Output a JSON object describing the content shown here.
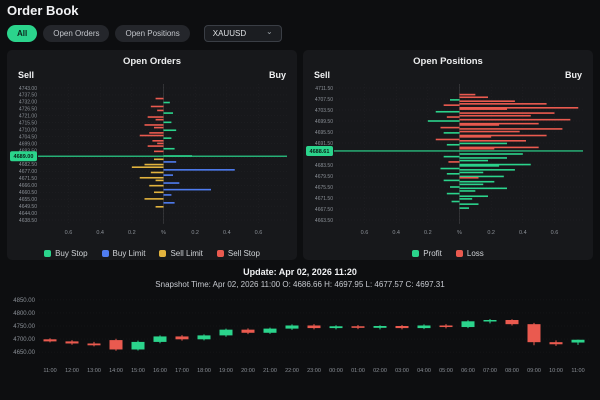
{
  "header": {
    "title": "Order Book"
  },
  "filters": {
    "all": "All",
    "open_orders": "Open Orders",
    "open_positions": "Open Positions",
    "symbol": "XAUUSD"
  },
  "panels": {
    "orders": {
      "title": "Open Orders",
      "sell": "Sell",
      "buy": "Buy"
    },
    "positions": {
      "title": "Open Positions",
      "sell": "Sell",
      "buy": "Buy"
    }
  },
  "footer": {
    "update": "Update: Apr 02, 2026 11:20",
    "snapshot": "Snapshot Time: Apr 02, 2026 11:00   O: 4686.66 H: 4697.95 L: 4677.57 C: 4697.31"
  },
  "colors": {
    "page_bg": "#0d0e10",
    "panel_bg": "#17181b",
    "accent": "#2bd48c",
    "buy_stop": "#2bd48c",
    "buy_limit": "#4f7cf0",
    "sell_limit": "#e2b33e",
    "sell_stop": "#ea5a4f",
    "profit": "#2bd48c",
    "loss": "#ea5a4f",
    "up": "#2bd48c",
    "down": "#ea5a4f"
  },
  "chart_data": [
    {
      "id": "open-orders-depth",
      "type": "bar",
      "orientation": "horizontal-depth",
      "title": "Open Orders",
      "center_price": 4689.0,
      "center_price_label": "4689.00",
      "price_labels": [
        "4743.00",
        "4737.50",
        "4732.00",
        "4726.50",
        "4721.00",
        "4715.50",
        "4710.00",
        "4704.50",
        "4699.00",
        "4693.50",
        "4688.00",
        "4682.50",
        "4677.00",
        "4671.50",
        "4666.00",
        "4660.50",
        "4655.00",
        "4649.50",
        "4644.00",
        "4638.50"
      ],
      "x_ticks": [
        -0.6,
        -0.4,
        -0.2,
        0,
        0.2,
        0.4,
        0.6
      ],
      "legend": [
        {
          "key": "buy_stop",
          "label": "Buy Stop"
        },
        {
          "key": "buy_limit",
          "label": "Buy Limit"
        },
        {
          "key": "sell_limit",
          "label": "Sell Limit"
        },
        {
          "key": "sell_stop",
          "label": "Sell Stop"
        }
      ],
      "bars": [
        [
          0.08,
          -1,
          0.05,
          "sell_stop"
        ],
        [
          0.11,
          1,
          0.04,
          "buy_stop"
        ],
        [
          0.14,
          -1,
          0.08,
          "sell_stop"
        ],
        [
          0.17,
          -1,
          0.04,
          "sell_stop"
        ],
        [
          0.19,
          1,
          0.06,
          "buy_stop"
        ],
        [
          0.22,
          -1,
          0.1,
          "sell_stop"
        ],
        [
          0.24,
          -1,
          0.05,
          "sell_stop"
        ],
        [
          0.26,
          1,
          0.05,
          "buy_stop"
        ],
        [
          0.28,
          -1,
          0.12,
          "sell_stop"
        ],
        [
          0.3,
          -1,
          0.06,
          "sell_stop"
        ],
        [
          0.32,
          1,
          0.08,
          "buy_stop"
        ],
        [
          0.34,
          -1,
          0.09,
          "sell_stop"
        ],
        [
          0.36,
          -1,
          0.15,
          "sell_stop"
        ],
        [
          0.38,
          1,
          0.05,
          "buy_stop"
        ],
        [
          0.4,
          -1,
          0.07,
          "sell_stop"
        ],
        [
          0.42,
          -1,
          0.04,
          "sell_stop"
        ],
        [
          0.44,
          -1,
          0.1,
          "sell_stop"
        ],
        [
          0.46,
          1,
          0.07,
          "buy_stop"
        ],
        [
          0.48,
          -1,
          0.06,
          "sell_stop"
        ],
        [
          0.515,
          1,
          0.18,
          "buy_stop"
        ],
        [
          0.54,
          -1,
          0.06,
          "sell_limit"
        ],
        [
          0.56,
          1,
          0.08,
          "buy_limit"
        ],
        [
          0.58,
          -1,
          0.12,
          "sell_limit"
        ],
        [
          0.6,
          -1,
          0.2,
          "sell_limit"
        ],
        [
          0.62,
          1,
          0.45,
          "buy_limit"
        ],
        [
          0.64,
          -1,
          0.08,
          "sell_limit"
        ],
        [
          0.66,
          1,
          0.06,
          "buy_limit"
        ],
        [
          0.68,
          -1,
          0.15,
          "sell_limit"
        ],
        [
          0.7,
          -1,
          0.05,
          "sell_limit"
        ],
        [
          0.72,
          1,
          0.1,
          "buy_limit"
        ],
        [
          0.74,
          -1,
          0.09,
          "sell_limit"
        ],
        [
          0.77,
          1,
          0.3,
          "buy_limit"
        ],
        [
          0.79,
          -1,
          0.06,
          "sell_limit"
        ],
        [
          0.81,
          1,
          0.05,
          "buy_limit"
        ],
        [
          0.84,
          -1,
          0.12,
          "sell_limit"
        ],
        [
          0.87,
          1,
          0.07,
          "buy_limit"
        ],
        [
          0.9,
          -1,
          0.05,
          "sell_limit"
        ]
      ]
    },
    {
      "id": "open-positions-depth",
      "type": "bar",
      "orientation": "horizontal-depth",
      "title": "Open Positions",
      "center_price": 4688.61,
      "center_price_label": "4688.61",
      "price_labels": [
        "4711.50",
        "4707.50",
        "4703.50",
        "4699.50",
        "4695.50",
        "4691.50",
        "4687.50",
        "4683.50",
        "4679.50",
        "4675.50",
        "4671.50",
        "4667.50",
        "4663.50"
      ],
      "x_ticks": [
        -0.6,
        -0.4,
        -0.2,
        0,
        0.2,
        0.4,
        0.6
      ],
      "legend": [
        {
          "key": "profit",
          "label": "Profit"
        },
        {
          "key": "loss",
          "label": "Loss"
        }
      ],
      "bars": [
        [
          0.05,
          1,
          0.1,
          "loss"
        ],
        [
          0.07,
          1,
          0.18,
          "loss"
        ],
        [
          0.09,
          -1,
          0.06,
          "profit"
        ],
        [
          0.1,
          1,
          0.35,
          "loss"
        ],
        [
          0.12,
          1,
          0.55,
          "loss"
        ],
        [
          0.13,
          -1,
          0.1,
          "loss"
        ],
        [
          0.15,
          1,
          0.75,
          "loss"
        ],
        [
          0.16,
          1,
          0.3,
          "loss"
        ],
        [
          0.18,
          -1,
          0.15,
          "profit"
        ],
        [
          0.19,
          1,
          0.6,
          "loss"
        ],
        [
          0.21,
          1,
          0.45,
          "loss"
        ],
        [
          0.22,
          -1,
          0.08,
          "loss"
        ],
        [
          0.24,
          1,
          0.7,
          "loss"
        ],
        [
          0.25,
          -1,
          0.2,
          "profit"
        ],
        [
          0.27,
          1,
          0.5,
          "loss"
        ],
        [
          0.28,
          1,
          0.25,
          "loss"
        ],
        [
          0.3,
          -1,
          0.12,
          "loss"
        ],
        [
          0.31,
          1,
          0.65,
          "loss"
        ],
        [
          0.33,
          1,
          0.38,
          "loss"
        ],
        [
          0.34,
          -1,
          0.1,
          "profit"
        ],
        [
          0.36,
          1,
          0.55,
          "loss"
        ],
        [
          0.37,
          1,
          0.2,
          "loss"
        ],
        [
          0.39,
          -1,
          0.15,
          "loss"
        ],
        [
          0.4,
          1,
          0.42,
          "loss"
        ],
        [
          0.42,
          1,
          0.3,
          "profit"
        ],
        [
          0.43,
          -1,
          0.08,
          "profit"
        ],
        [
          0.45,
          1,
          0.5,
          "loss"
        ],
        [
          0.46,
          1,
          0.22,
          "loss"
        ],
        [
          0.5,
          1,
          0.4,
          "profit"
        ],
        [
          0.52,
          -1,
          0.1,
          "profit"
        ],
        [
          0.53,
          1,
          0.3,
          "profit"
        ],
        [
          0.55,
          1,
          0.18,
          "profit"
        ],
        [
          0.56,
          -1,
          0.07,
          "loss"
        ],
        [
          0.58,
          1,
          0.45,
          "profit"
        ],
        [
          0.59,
          1,
          0.25,
          "profit"
        ],
        [
          0.61,
          -1,
          0.12,
          "profit"
        ],
        [
          0.62,
          1,
          0.35,
          "profit"
        ],
        [
          0.64,
          1,
          0.15,
          "profit"
        ],
        [
          0.65,
          -1,
          0.08,
          "profit"
        ],
        [
          0.67,
          1,
          0.28,
          "profit"
        ],
        [
          0.68,
          1,
          0.12,
          "loss"
        ],
        [
          0.7,
          -1,
          0.1,
          "profit"
        ],
        [
          0.71,
          1,
          0.22,
          "profit"
        ],
        [
          0.73,
          1,
          0.15,
          "profit"
        ],
        [
          0.75,
          -1,
          0.06,
          "profit"
        ],
        [
          0.76,
          1,
          0.3,
          "profit"
        ],
        [
          0.78,
          1,
          0.1,
          "profit"
        ],
        [
          0.8,
          -1,
          0.08,
          "profit"
        ],
        [
          0.82,
          1,
          0.18,
          "profit"
        ],
        [
          0.84,
          1,
          0.08,
          "profit"
        ],
        [
          0.86,
          -1,
          0.05,
          "profit"
        ],
        [
          0.88,
          1,
          0.12,
          "profit"
        ],
        [
          0.91,
          1,
          0.06,
          "profit"
        ]
      ]
    },
    {
      "id": "price-candles",
      "type": "candlestick",
      "x": [
        "11:00",
        "12:00",
        "13:00",
        "14:00",
        "15:00",
        "16:00",
        "17:00",
        "18:00",
        "19:00",
        "20:00",
        "21:00",
        "22:00",
        "23:00",
        "00:00",
        "01:00",
        "02:00",
        "03:00",
        "04:00",
        "05:00",
        "06:00",
        "07:00",
        "08:00",
        "09:00",
        "10:00",
        "11:00"
      ],
      "y_labels": [
        "4850.00",
        "4800.00",
        "4750.00",
        "4700.00",
        "4650.00"
      ],
      "ylim": [
        4635,
        4865
      ],
      "ohlc": [
        [
          4699,
          4703,
          4687,
          4691
        ],
        [
          4691,
          4696,
          4678,
          4683
        ],
        [
          4683,
          4689,
          4672,
          4676
        ],
        [
          4696,
          4701,
          4655,
          4660
        ],
        [
          4660,
          4694,
          4656,
          4689
        ],
        [
          4689,
          4714,
          4684,
          4710
        ],
        [
          4710,
          4715,
          4694,
          4699
        ],
        [
          4699,
          4718,
          4695,
          4714
        ],
        [
          4714,
          4740,
          4709,
          4736
        ],
        [
          4736,
          4741,
          4719,
          4724
        ],
        [
          4724,
          4744,
          4720,
          4740
        ],
        [
          4740,
          4756,
          4735,
          4752
        ],
        [
          4752,
          4757,
          4737,
          4742
        ],
        [
          4742,
          4753,
          4737,
          4749
        ],
        [
          4749,
          4754,
          4738,
          4743
        ],
        [
          4743,
          4753,
          4737,
          4750
        ],
        [
          4750,
          4754,
          4737,
          4742
        ],
        [
          4742,
          4756,
          4738,
          4752
        ],
        [
          4752,
          4757,
          4741,
          4746
        ],
        [
          4746,
          4772,
          4742,
          4768
        ],
        [
          4768,
          4777,
          4760,
          4773
        ],
        [
          4773,
          4776,
          4752,
          4757
        ],
        [
          4757,
          4762,
          4676,
          4688
        ],
        [
          4688,
          4695,
          4674,
          4680
        ],
        [
          4686.66,
          4697.95,
          4677.57,
          4697.31
        ]
      ]
    }
  ]
}
